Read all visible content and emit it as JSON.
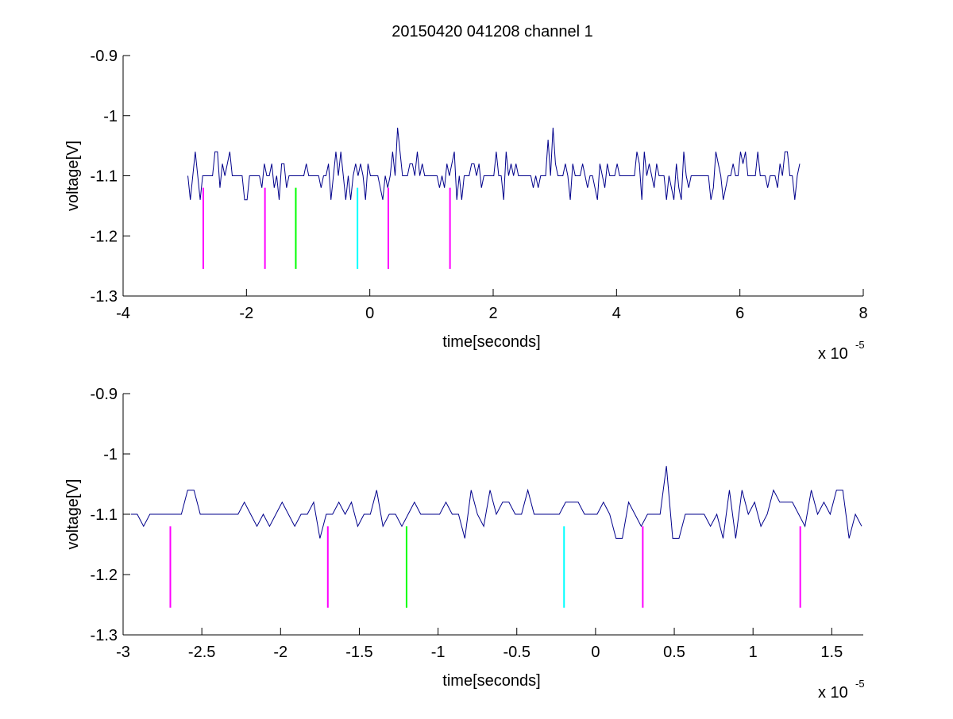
{
  "figure": {
    "title": "20150420 041208 channel 1"
  },
  "colors": {
    "signal": "#00008b",
    "magenta": "#ff00ff",
    "green": "#00ff00",
    "cyan": "#00ffff",
    "axes": "#000000"
  },
  "chart_data": [
    {
      "type": "line",
      "title": "20150420 041208 channel 1",
      "xlabel": "time[seconds]",
      "ylabel": "voltage[V]",
      "x_multiplier": "x 10",
      "x_exponent": "-5",
      "xlim": [
        -4e-05,
        8e-05
      ],
      "ylim": [
        -1.3,
        -0.9
      ],
      "xticks": [
        -4e-05,
        -2e-05,
        0,
        2e-05,
        4e-05,
        6e-05,
        8e-05
      ],
      "xtick_labels": [
        "-4",
        "-2",
        "0",
        "2",
        "4",
        "6",
        "8"
      ],
      "yticks": [
        -0.9,
        -1.0,
        -1.1,
        -1.2,
        -1.3
      ],
      "ytick_labels": [
        "-0.9",
        "-1",
        "-1.1",
        "-1.2",
        "-1.3"
      ],
      "grid": false,
      "signal": {
        "x_start": -2.95e-05,
        "x_end": 7e-05,
        "levels": [
          -1.14,
          -1.12,
          -1.1,
          -1.08,
          -1.06
        ],
        "spikes": [
          [
            4.5e-06,
            -1.02
          ],
          [
            2.95e-05,
            -1.02
          ],
          [
            2.9e-05,
            -1.04
          ]
        ]
      },
      "markers": [
        {
          "x": -2.7e-05,
          "y": [
            -1.255,
            -1.12
          ],
          "color": "magenta"
        },
        {
          "x": -1.7e-05,
          "y": [
            -1.255,
            -1.12
          ],
          "color": "magenta"
        },
        {
          "x": -1.2e-05,
          "y": [
            -1.255,
            -1.12
          ],
          "color": "green"
        },
        {
          "x": -2e-06,
          "y": [
            -1.255,
            -1.12
          ],
          "color": "cyan"
        },
        {
          "x": 3e-06,
          "y": [
            -1.255,
            -1.12
          ],
          "color": "magenta"
        },
        {
          "x": 1.3e-05,
          "y": [
            -1.255,
            -1.12
          ],
          "color": "magenta"
        }
      ]
    },
    {
      "type": "line",
      "xlabel": "time[seconds]",
      "ylabel": "voltage[V]",
      "x_multiplier": "x 10",
      "x_exponent": "-5",
      "xlim": [
        -3e-05,
        1.7e-05
      ],
      "ylim": [
        -1.3,
        -0.9
      ],
      "xticks": [
        -3e-05,
        -2.5e-05,
        -2e-05,
        -1.5e-05,
        -1e-05,
        -5e-06,
        0,
        5e-06,
        1e-05,
        1.5e-05
      ],
      "xtick_labels": [
        "-3",
        "-2.5",
        "-2",
        "-1.5",
        "-1",
        "-0.5",
        "0",
        "0.5",
        "1",
        "1.5"
      ],
      "yticks": [
        -0.9,
        -1.0,
        -1.1,
        -1.2,
        -1.3
      ],
      "ytick_labels": [
        "-0.9",
        "-1",
        "-1.1",
        "-1.2",
        "-1.3"
      ],
      "grid": false,
      "signal": {
        "x_start": -2.95e-05,
        "x_end": 1.7e-05,
        "levels": [
          -1.14,
          -1.12,
          -1.1,
          -1.08,
          -1.06
        ],
        "spikes": [
          [
            4.5e-06,
            -1.02
          ]
        ]
      },
      "markers": [
        {
          "x": -2.7e-05,
          "y": [
            -1.255,
            -1.12
          ],
          "color": "magenta"
        },
        {
          "x": -1.7e-05,
          "y": [
            -1.255,
            -1.12
          ],
          "color": "magenta"
        },
        {
          "x": -1.2e-05,
          "y": [
            -1.255,
            -1.12
          ],
          "color": "green"
        },
        {
          "x": -2e-06,
          "y": [
            -1.255,
            -1.12
          ],
          "color": "cyan"
        },
        {
          "x": 3e-06,
          "y": [
            -1.255,
            -1.12
          ],
          "color": "magenta"
        },
        {
          "x": 1.3e-05,
          "y": [
            -1.255,
            -1.12
          ],
          "color": "magenta"
        }
      ]
    }
  ]
}
